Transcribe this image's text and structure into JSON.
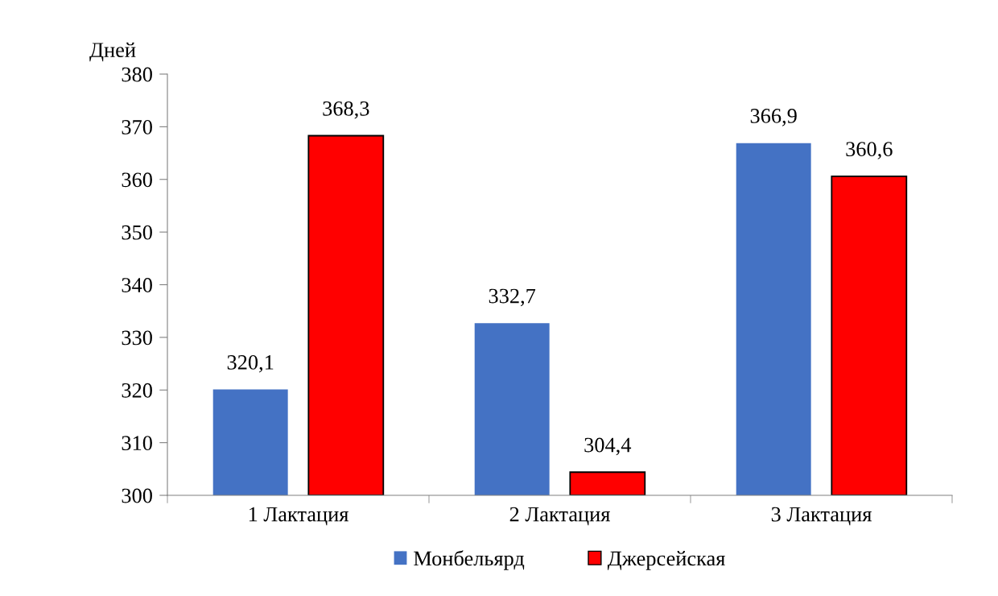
{
  "chart_data": {
    "type": "bar",
    "ylabel": "Дней",
    "categories": [
      "1 Лактация",
      "2 Лактация",
      "3 Лактация"
    ],
    "series": [
      {
        "name": "Монбельярд",
        "color": "#4472c4",
        "values": [
          320.1,
          332.7,
          366.9
        ],
        "value_labels": [
          "320,1",
          "332,7",
          "366,9"
        ]
      },
      {
        "name": "Джерсейская",
        "color": "#ff0000",
        "values": [
          368.3,
          304.4,
          360.6
        ],
        "value_labels": [
          "368,3",
          "304,4",
          "360,6"
        ]
      }
    ],
    "ylim": [
      300,
      380
    ],
    "yticks": [
      300,
      310,
      320,
      330,
      340,
      350,
      360,
      370,
      380
    ],
    "grid": false,
    "legend": "bottom"
  }
}
